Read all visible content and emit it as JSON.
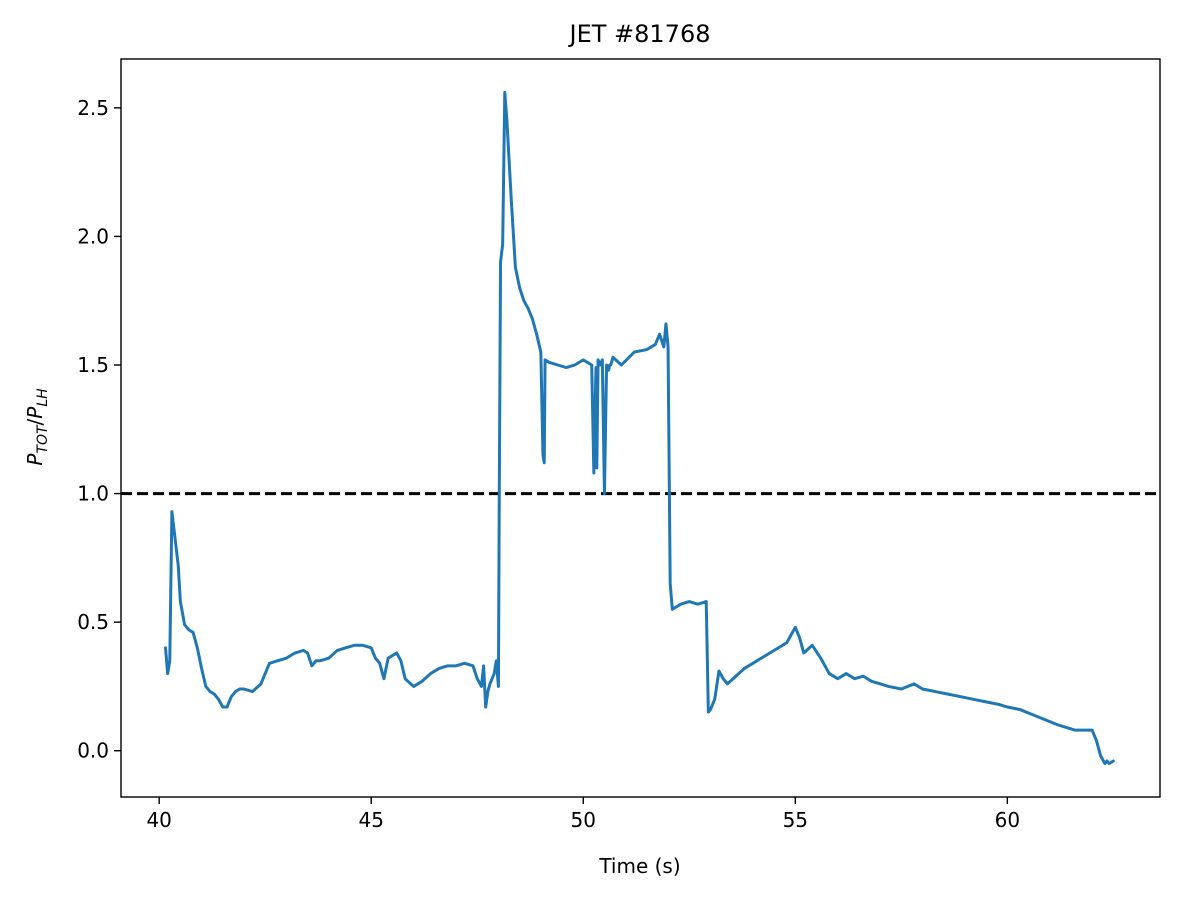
{
  "chart_data": {
    "type": "line",
    "title": "JET #81768",
    "xlabel": "Time (s)",
    "ylabel": {
      "base": "P",
      "sub1": "TOT",
      "sep": "/",
      "base2": "P",
      "sub2": "LH"
    },
    "xlim": [
      39.1,
      63.6
    ],
    "ylim": [
      -0.18,
      2.69
    ],
    "xticks": [
      40,
      45,
      50,
      55,
      60
    ],
    "xtick_labels": [
      "40",
      "45",
      "50",
      "55",
      "60"
    ],
    "yticks": [
      0.0,
      0.5,
      1.0,
      1.5,
      2.0,
      2.5
    ],
    "ytick_labels": [
      "0.0",
      "0.5",
      "1.0",
      "1.5",
      "2.0",
      "2.5"
    ],
    "grid": false,
    "colors": {
      "series": "#1f77b4",
      "threshold": "#000000"
    },
    "threshold": {
      "y": 1.0,
      "style": "dashed"
    },
    "series": [
      {
        "x": [
          40.15,
          40.2,
          40.25,
          40.3,
          40.35,
          40.45,
          40.5,
          40.6,
          40.7,
          40.8,
          40.9,
          41.0,
          41.1,
          41.2,
          41.3,
          41.4,
          41.5,
          41.6,
          41.7,
          41.8,
          41.9,
          42.0,
          42.2,
          42.4,
          42.6,
          42.8,
          43.0,
          43.2,
          43.4,
          43.5,
          43.6,
          43.7,
          43.8,
          44.0,
          44.2,
          44.4,
          44.6,
          44.8,
          45.0,
          45.1,
          45.2,
          45.3,
          45.4,
          45.5,
          45.6,
          45.7,
          45.8,
          46.0,
          46.2,
          46.4,
          46.6,
          46.8,
          47.0,
          47.2,
          47.4,
          47.5,
          47.6,
          47.65,
          47.7,
          47.75,
          47.8,
          47.9,
          47.95,
          48.0,
          48.02,
          48.05,
          48.1,
          48.15,
          48.2,
          48.3,
          48.4,
          48.5,
          48.6,
          48.7,
          48.8,
          48.9,
          49.0,
          49.05,
          49.08,
          49.1,
          49.2,
          49.4,
          49.6,
          49.8,
          50.0,
          50.2,
          50.25,
          50.3,
          50.32,
          50.35,
          50.4,
          50.45,
          50.5,
          50.55,
          50.6,
          50.62,
          50.65,
          50.7,
          50.9,
          51.2,
          51.5,
          51.7,
          51.8,
          51.9,
          51.95,
          52.0,
          52.05,
          52.1,
          52.3,
          52.5,
          52.7,
          52.9,
          52.95,
          53.0,
          53.1,
          53.2,
          53.3,
          53.4,
          53.6,
          53.8,
          54.0,
          54.2,
          54.4,
          54.6,
          54.8,
          55.0,
          55.1,
          55.2,
          55.4,
          55.6,
          55.8,
          56.0,
          56.2,
          56.4,
          56.6,
          56.8,
          57.0,
          57.2,
          57.5,
          57.8,
          58.0,
          58.3,
          58.6,
          58.9,
          59.2,
          59.5,
          59.8,
          60.0,
          60.3,
          60.6,
          60.9,
          61.2,
          61.4,
          61.6,
          61.8,
          62.0,
          62.1,
          62.2,
          62.3,
          62.35,
          62.4,
          62.5
        ],
        "y": [
          0.4,
          0.3,
          0.35,
          0.93,
          0.86,
          0.72,
          0.58,
          0.49,
          0.47,
          0.46,
          0.4,
          0.32,
          0.25,
          0.23,
          0.22,
          0.2,
          0.17,
          0.17,
          0.21,
          0.23,
          0.24,
          0.24,
          0.23,
          0.26,
          0.34,
          0.35,
          0.36,
          0.38,
          0.39,
          0.38,
          0.33,
          0.35,
          0.35,
          0.36,
          0.39,
          0.4,
          0.41,
          0.41,
          0.4,
          0.36,
          0.34,
          0.28,
          0.36,
          0.37,
          0.38,
          0.35,
          0.28,
          0.25,
          0.27,
          0.3,
          0.32,
          0.33,
          0.33,
          0.34,
          0.33,
          0.28,
          0.25,
          0.33,
          0.17,
          0.23,
          0.26,
          0.3,
          0.35,
          0.25,
          1.0,
          1.9,
          1.97,
          2.56,
          2.45,
          2.15,
          1.88,
          1.8,
          1.75,
          1.72,
          1.68,
          1.62,
          1.55,
          1.15,
          1.12,
          1.52,
          1.51,
          1.5,
          1.49,
          1.5,
          1.52,
          1.5,
          1.08,
          1.49,
          1.1,
          1.52,
          1.5,
          1.52,
          1.0,
          1.5,
          1.48,
          1.5,
          1.5,
          1.53,
          1.5,
          1.55,
          1.56,
          1.58,
          1.62,
          1.57,
          1.66,
          1.57,
          0.65,
          0.55,
          0.57,
          0.58,
          0.57,
          0.58,
          0.15,
          0.16,
          0.2,
          0.31,
          0.28,
          0.26,
          0.29,
          0.32,
          0.34,
          0.36,
          0.38,
          0.4,
          0.42,
          0.48,
          0.44,
          0.38,
          0.41,
          0.36,
          0.3,
          0.28,
          0.3,
          0.28,
          0.29,
          0.27,
          0.26,
          0.25,
          0.24,
          0.26,
          0.24,
          0.23,
          0.22,
          0.21,
          0.2,
          0.19,
          0.18,
          0.17,
          0.16,
          0.14,
          0.12,
          0.1,
          0.09,
          0.08,
          0.08,
          0.08,
          0.04,
          -0.02,
          -0.05,
          -0.04,
          -0.05,
          -0.04
        ]
      }
    ]
  }
}
